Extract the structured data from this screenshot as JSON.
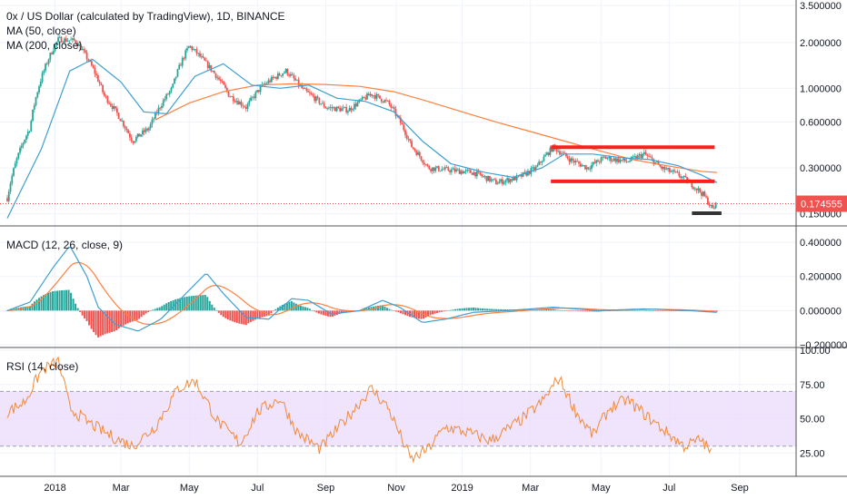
{
  "chart_data": [
    {
      "type": "candlestick",
      "title": "0x / US Dollar (calculated by TradingView), 1D, BINANCE",
      "indicators": [
        "MA (50, close)",
        "MA (200, close)"
      ],
      "y_scale": "log",
      "y_ticks": [
        "3.500000",
        "2.000000",
        "1.000000",
        "0.600000",
        "0.300000",
        "0.150000"
      ],
      "y_tick_values": [
        3.5,
        2.0,
        1.0,
        0.6,
        0.3,
        0.15
      ],
      "current_price_label": "0.174555",
      "current_price": 0.174555,
      "x_ticks": [
        "2018",
        "Mar",
        "May",
        "Jul",
        "Sep",
        "Nov",
        "2019",
        "Mar",
        "May",
        "Jul",
        "Sep"
      ],
      "price_path": [
        {
          "t": 0,
          "v": 0.19
        },
        {
          "t": 20,
          "v": 0.55
        },
        {
          "t": 45,
          "v": 2.1
        },
        {
          "t": 60,
          "v": 2.05
        },
        {
          "t": 85,
          "v": 0.9
        },
        {
          "t": 100,
          "v": 0.62
        },
        {
          "t": 110,
          "v": 0.45
        },
        {
          "t": 125,
          "v": 0.55
        },
        {
          "t": 145,
          "v": 1.0
        },
        {
          "t": 160,
          "v": 1.9
        },
        {
          "t": 175,
          "v": 1.45
        },
        {
          "t": 195,
          "v": 0.9
        },
        {
          "t": 210,
          "v": 0.75
        },
        {
          "t": 225,
          "v": 1.05
        },
        {
          "t": 245,
          "v": 1.3
        },
        {
          "t": 260,
          "v": 0.98
        },
        {
          "t": 280,
          "v": 0.75
        },
        {
          "t": 300,
          "v": 0.72
        },
        {
          "t": 320,
          "v": 0.92
        },
        {
          "t": 335,
          "v": 0.8
        },
        {
          "t": 355,
          "v": 0.42
        },
        {
          "t": 370,
          "v": 0.3
        },
        {
          "t": 390,
          "v": 0.29
        },
        {
          "t": 410,
          "v": 0.28
        },
        {
          "t": 430,
          "v": 0.24
        },
        {
          "t": 450,
          "v": 0.26
        },
        {
          "t": 465,
          "v": 0.3
        },
        {
          "t": 480,
          "v": 0.41
        },
        {
          "t": 495,
          "v": 0.34
        },
        {
          "t": 510,
          "v": 0.3
        },
        {
          "t": 525,
          "v": 0.35
        },
        {
          "t": 545,
          "v": 0.33
        },
        {
          "t": 560,
          "v": 0.37
        },
        {
          "t": 575,
          "v": 0.3
        },
        {
          "t": 590,
          "v": 0.27
        },
        {
          "t": 600,
          "v": 0.24
        },
        {
          "t": 612,
          "v": 0.2
        },
        {
          "t": 620,
          "v": 0.16
        },
        {
          "t": 624,
          "v": 0.175
        }
      ],
      "ma50_path": [
        {
          "t": 0,
          "v": 0.14
        },
        {
          "t": 30,
          "v": 0.4
        },
        {
          "t": 55,
          "v": 1.3
        },
        {
          "t": 75,
          "v": 1.55
        },
        {
          "t": 100,
          "v": 1.1
        },
        {
          "t": 120,
          "v": 0.7
        },
        {
          "t": 140,
          "v": 0.68
        },
        {
          "t": 165,
          "v": 1.2
        },
        {
          "t": 190,
          "v": 1.45
        },
        {
          "t": 215,
          "v": 1.05
        },
        {
          "t": 240,
          "v": 1.0
        },
        {
          "t": 265,
          "v": 1.05
        },
        {
          "t": 290,
          "v": 0.86
        },
        {
          "t": 315,
          "v": 0.82
        },
        {
          "t": 340,
          "v": 0.7
        },
        {
          "t": 365,
          "v": 0.45
        },
        {
          "t": 390,
          "v": 0.32
        },
        {
          "t": 420,
          "v": 0.28
        },
        {
          "t": 445,
          "v": 0.26
        },
        {
          "t": 470,
          "v": 0.3
        },
        {
          "t": 490,
          "v": 0.37
        },
        {
          "t": 515,
          "v": 0.37
        },
        {
          "t": 540,
          "v": 0.35
        },
        {
          "t": 565,
          "v": 0.34
        },
        {
          "t": 590,
          "v": 0.31
        },
        {
          "t": 610,
          "v": 0.27
        },
        {
          "t": 624,
          "v": 0.24
        }
      ],
      "ma200_path": [
        {
          "t": 130,
          "v": 0.62
        },
        {
          "t": 160,
          "v": 0.8
        },
        {
          "t": 190,
          "v": 0.95
        },
        {
          "t": 220,
          "v": 1.05
        },
        {
          "t": 250,
          "v": 1.07
        },
        {
          "t": 280,
          "v": 1.06
        },
        {
          "t": 310,
          "v": 1.03
        },
        {
          "t": 340,
          "v": 0.95
        },
        {
          "t": 370,
          "v": 0.82
        },
        {
          "t": 400,
          "v": 0.7
        },
        {
          "t": 430,
          "v": 0.6
        },
        {
          "t": 460,
          "v": 0.52
        },
        {
          "t": 490,
          "v": 0.45
        },
        {
          "t": 520,
          "v": 0.39
        },
        {
          "t": 550,
          "v": 0.34
        },
        {
          "t": 580,
          "v": 0.31
        },
        {
          "t": 610,
          "v": 0.285
        },
        {
          "t": 624,
          "v": 0.28
        }
      ],
      "annotation_upper_level": 0.41,
      "annotation_lower_level": 0.245
    },
    {
      "type": "line",
      "title": "MACD (12, 26, close, 9)",
      "y_ticks": [
        "0.400000",
        "0.200000",
        "0.000000",
        "−0.200000"
      ],
      "y_tick_values": [
        0.4,
        0.2,
        0.0,
        -0.2
      ],
      "macd_path": [
        {
          "t": 0,
          "v": 0.0
        },
        {
          "t": 20,
          "v": 0.05
        },
        {
          "t": 40,
          "v": 0.25
        },
        {
          "t": 55,
          "v": 0.38
        },
        {
          "t": 70,
          "v": 0.2
        },
        {
          "t": 80,
          "v": 0.02
        },
        {
          "t": 95,
          "v": -0.08
        },
        {
          "t": 115,
          "v": -0.12
        },
        {
          "t": 135,
          "v": -0.05
        },
        {
          "t": 160,
          "v": 0.12
        },
        {
          "t": 175,
          "v": 0.22
        },
        {
          "t": 190,
          "v": 0.1
        },
        {
          "t": 210,
          "v": -0.04
        },
        {
          "t": 230,
          "v": -0.05
        },
        {
          "t": 250,
          "v": 0.07
        },
        {
          "t": 265,
          "v": 0.06
        },
        {
          "t": 285,
          "v": -0.02
        },
        {
          "t": 310,
          "v": 0.0
        },
        {
          "t": 330,
          "v": 0.06
        },
        {
          "t": 345,
          "v": 0.02
        },
        {
          "t": 365,
          "v": -0.07
        },
        {
          "t": 385,
          "v": -0.05
        },
        {
          "t": 410,
          "v": -0.01
        },
        {
          "t": 440,
          "v": 0.0
        },
        {
          "t": 480,
          "v": 0.02
        },
        {
          "t": 520,
          "v": 0.0
        },
        {
          "t": 560,
          "v": 0.01
        },
        {
          "t": 600,
          "v": 0.0
        },
        {
          "t": 624,
          "v": -0.01
        }
      ]
    },
    {
      "type": "line",
      "title": "RSI (14, close)",
      "y_ticks": [
        "100.00",
        "75.00",
        "50.00",
        "25.00"
      ],
      "y_tick_values": [
        100,
        75,
        50,
        25
      ],
      "bands": [
        30,
        70
      ],
      "rsi_path": [
        {
          "t": 0,
          "v": 55
        },
        {
          "t": 15,
          "v": 62
        },
        {
          "t": 30,
          "v": 85
        },
        {
          "t": 45,
          "v": 92
        },
        {
          "t": 55,
          "v": 58
        },
        {
          "t": 70,
          "v": 48
        },
        {
          "t": 90,
          "v": 38
        },
        {
          "t": 110,
          "v": 30
        },
        {
          "t": 130,
          "v": 44
        },
        {
          "t": 150,
          "v": 72
        },
        {
          "t": 165,
          "v": 78
        },
        {
          "t": 185,
          "v": 48
        },
        {
          "t": 205,
          "v": 32
        },
        {
          "t": 220,
          "v": 55
        },
        {
          "t": 240,
          "v": 65
        },
        {
          "t": 255,
          "v": 40
        },
        {
          "t": 275,
          "v": 28
        },
        {
          "t": 300,
          "v": 52
        },
        {
          "t": 320,
          "v": 72
        },
        {
          "t": 335,
          "v": 58
        },
        {
          "t": 355,
          "v": 20
        },
        {
          "t": 370,
          "v": 28
        },
        {
          "t": 385,
          "v": 44
        },
        {
          "t": 405,
          "v": 40
        },
        {
          "t": 425,
          "v": 34
        },
        {
          "t": 450,
          "v": 48
        },
        {
          "t": 470,
          "v": 62
        },
        {
          "t": 485,
          "v": 80
        },
        {
          "t": 500,
          "v": 55
        },
        {
          "t": 515,
          "v": 38
        },
        {
          "t": 530,
          "v": 58
        },
        {
          "t": 545,
          "v": 64
        },
        {
          "t": 565,
          "v": 50
        },
        {
          "t": 580,
          "v": 40
        },
        {
          "t": 595,
          "v": 30
        },
        {
          "t": 610,
          "v": 35
        },
        {
          "t": 620,
          "v": 24
        }
      ]
    }
  ]
}
